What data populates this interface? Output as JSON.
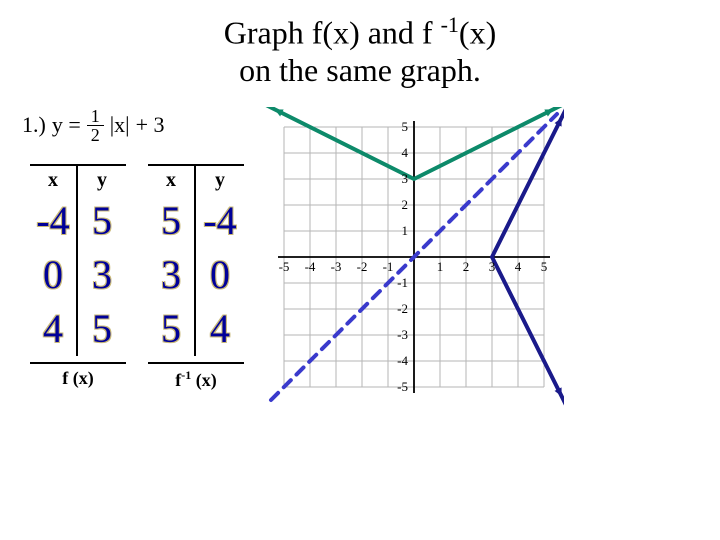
{
  "title_line1": "Graph f(x) and f",
  "title_sup": "-1",
  "title_after_sup": "(x)",
  "title_line2": "on the same graph.",
  "equation": {
    "label": "1.)",
    "lhs": "y =",
    "frac_num": "1",
    "frac_den": "2",
    "abs": "|x|",
    "tail": "+ 3"
  },
  "table1": {
    "header_x": "x",
    "header_y": "y",
    "rows": [
      [
        "-4",
        "5"
      ],
      [
        "0",
        "3"
      ],
      [
        "4",
        "5"
      ]
    ],
    "caption": "f (x)"
  },
  "table2": {
    "header_x": "x",
    "header_y": "y",
    "rows": [
      [
        "5",
        "-4"
      ],
      [
        "3",
        "0"
      ],
      [
        "5",
        "4"
      ]
    ],
    "caption_prefix": "f",
    "caption_sup": "-1",
    "caption_suffix": " (x)"
  },
  "chart": {
    "xlim": [
      -5,
      5
    ],
    "ylim": [
      -5,
      5
    ],
    "grid_color": "#b5b5b5",
    "axis_color": "#000000",
    "background": "#ffffff",
    "axis_label_font": 13,
    "f_line": {
      "color": "#0d8a6a",
      "width": 4,
      "points": [
        [
          -8,
          7
        ],
        [
          0,
          3
        ],
        [
          8,
          7
        ]
      ]
    },
    "finv_line": {
      "color": "#1a1a8a",
      "width": 4,
      "points": [
        [
          7,
          -8
        ],
        [
          3,
          0
        ],
        [
          7,
          8
        ]
      ]
    },
    "yx_line": {
      "color": "#3a3acc",
      "width": 4,
      "dash": "10 8",
      "points": [
        [
          -5.5,
          -5.5
        ],
        [
          5.5,
          5.5
        ]
      ]
    },
    "xticks": [
      -5,
      -4,
      -3,
      -2,
      -1,
      1,
      2,
      3,
      4,
      5
    ],
    "yticks": [
      -5,
      -4,
      -3,
      -2,
      -1,
      1,
      2,
      3,
      4,
      5
    ]
  }
}
